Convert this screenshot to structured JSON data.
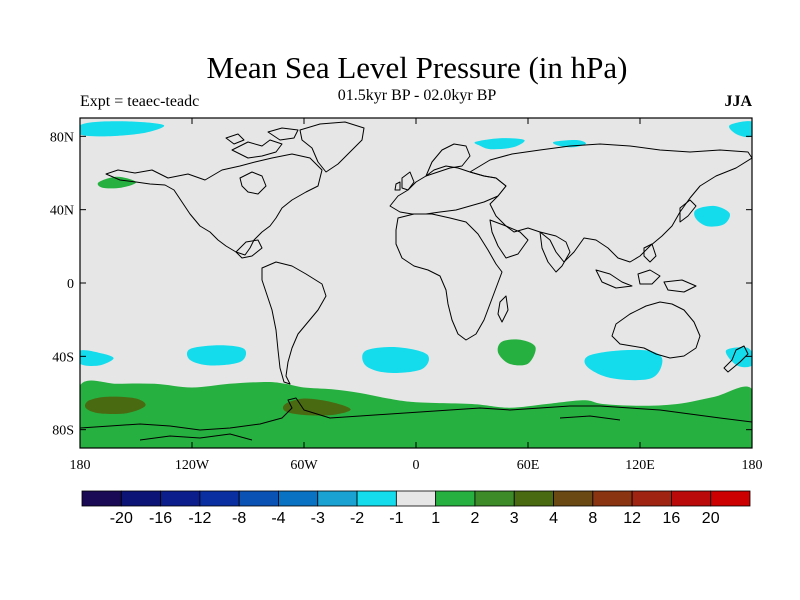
{
  "title": "Mean Sea Level Pressure (in hPa)",
  "subtitle": "01.5kyr BP - 02.0kyr BP",
  "experiment": "Expt = teaec-teadc",
  "season": "JJA",
  "map": {
    "lon_range": [
      -180,
      180
    ],
    "lat_range": [
      -90,
      90
    ],
    "background_color": "#e6e6e6",
    "coastline_color": "#000000",
    "x_ticks": [
      {
        "lon": -180,
        "label": "180"
      },
      {
        "lon": -120,
        "label": "120W"
      },
      {
        "lon": -60,
        "label": "60W"
      },
      {
        "lon": 0,
        "label": "0"
      },
      {
        "lon": 60,
        "label": "60E"
      },
      {
        "lon": 120,
        "label": "120E"
      },
      {
        "lon": 180,
        "label": "180"
      }
    ],
    "y_ticks": [
      {
        "lat": 80,
        "label": "80N"
      },
      {
        "lat": 40,
        "label": "40N"
      },
      {
        "lat": 0,
        "label": "0"
      },
      {
        "lat": -40,
        "label": "40S"
      },
      {
        "lat": -80,
        "label": "80S"
      }
    ],
    "anomaly_regions": [
      {
        "name": "arctic-pacific-low",
        "level": -2,
        "points": [
          [
            -180,
            86
          ],
          [
            -170,
            88
          ],
          [
            -150,
            88
          ],
          [
            -135,
            86
          ],
          [
            -145,
            82
          ],
          [
            -165,
            80
          ],
          [
            -180,
            81
          ]
        ]
      },
      {
        "name": "arctic-east-low",
        "level": -2,
        "points": [
          [
            168,
            86
          ],
          [
            180,
            88
          ],
          [
            180,
            80
          ],
          [
            172,
            81
          ]
        ]
      },
      {
        "name": "arctic-scandinavia-low",
        "level": -2,
        "points": [
          [
            32,
            77
          ],
          [
            45,
            79
          ],
          [
            58,
            78
          ],
          [
            52,
            74
          ],
          [
            40,
            73
          ],
          [
            34,
            75
          ]
        ]
      },
      {
        "name": "arctic-siberia-low",
        "level": -2,
        "points": [
          [
            74,
            77
          ],
          [
            86,
            78
          ],
          [
            91,
            76
          ],
          [
            84,
            74
          ],
          [
            76,
            75
          ]
        ]
      },
      {
        "name": "north-pacific-high",
        "level": 1,
        "points": [
          [
            -170,
            55
          ],
          [
            -160,
            58
          ],
          [
            -150,
            55
          ],
          [
            -158,
            52
          ],
          [
            -168,
            52
          ]
        ]
      },
      {
        "name": "west-pacific-low",
        "level": -2,
        "points": [
          [
            150,
            40
          ],
          [
            160,
            42
          ],
          [
            168,
            38
          ],
          [
            165,
            32
          ],
          [
            156,
            31
          ],
          [
            150,
            35
          ]
        ]
      },
      {
        "name": "south-pacific-low-west",
        "level": -2,
        "points": [
          [
            -180,
            -37
          ],
          [
            -170,
            -38
          ],
          [
            -162,
            -41
          ],
          [
            -170,
            -45
          ],
          [
            -180,
            -44
          ]
        ]
      },
      {
        "name": "south-pacific-low-central",
        "level": -2,
        "points": [
          [
            -121,
            -36
          ],
          [
            -105,
            -34
          ],
          [
            -92,
            -36
          ],
          [
            -94,
            -43
          ],
          [
            -110,
            -45
          ],
          [
            -121,
            -42
          ]
        ]
      },
      {
        "name": "south-atlantic-low",
        "level": -2,
        "points": [
          [
            -27,
            -37
          ],
          [
            -10,
            -35
          ],
          [
            6,
            -39
          ],
          [
            3,
            -47
          ],
          [
            -15,
            -49
          ],
          [
            -27,
            -45
          ]
        ]
      },
      {
        "name": "south-indian-high",
        "level": 1,
        "points": [
          [
            46,
            -32
          ],
          [
            56,
            -31
          ],
          [
            64,
            -35
          ],
          [
            60,
            -44
          ],
          [
            50,
            -44
          ],
          [
            44,
            -38
          ]
        ]
      },
      {
        "name": "south-indian-low",
        "level": -2,
        "points": [
          [
            92,
            -40
          ],
          [
            107,
            -37
          ],
          [
            125,
            -37
          ],
          [
            132,
            -42
          ],
          [
            126,
            -52
          ],
          [
            105,
            -52
          ],
          [
            92,
            -46
          ]
        ]
      },
      {
        "name": "south-pacific-low-east",
        "level": -2,
        "points": [
          [
            166,
            -37
          ],
          [
            176,
            -35
          ],
          [
            180,
            -38
          ],
          [
            180,
            -45
          ],
          [
            172,
            -45
          ]
        ]
      },
      {
        "name": "southern-ocean-high",
        "level": 1,
        "points": [
          [
            -180,
            -56
          ],
          [
            -160,
            -55
          ],
          [
            -140,
            -55
          ],
          [
            -120,
            -57
          ],
          [
            -100,
            -55
          ],
          [
            -80,
            -54
          ],
          [
            -70,
            -55
          ],
          [
            -60,
            -57
          ],
          [
            -45,
            -58
          ],
          [
            -30,
            -60
          ],
          [
            -15,
            -63
          ],
          [
            0,
            -65
          ],
          [
            30,
            -66
          ],
          [
            50,
            -68
          ],
          [
            70,
            -66
          ],
          [
            90,
            -64
          ],
          [
            100,
            -66
          ],
          [
            120,
            -67
          ],
          [
            140,
            -66
          ],
          [
            160,
            -62
          ],
          [
            180,
            -58
          ],
          [
            180,
            -90
          ],
          [
            -180,
            -90
          ]
        ]
      },
      {
        "name": "southern-ocean-high-west-core",
        "level": 3,
        "points": [
          [
            -175,
            -64
          ],
          [
            -165,
            -62
          ],
          [
            -150,
            -63
          ],
          [
            -145,
            -67
          ],
          [
            -155,
            -71
          ],
          [
            -170,
            -71
          ],
          [
            -177,
            -68
          ]
        ]
      },
      {
        "name": "southern-ocean-high-drake-core",
        "level": 3,
        "points": [
          [
            -70,
            -66
          ],
          [
            -60,
            -63
          ],
          [
            -45,
            -65
          ],
          [
            -35,
            -69
          ],
          [
            -45,
            -72
          ],
          [
            -60,
            -72
          ],
          [
            -70,
            -70
          ]
        ]
      }
    ],
    "antarctic_pattern_note": ""
  },
  "colorbar": {
    "colors": [
      "#1a0a55",
      "#0c1475",
      "#0c1e8c",
      "#0a2fa0",
      "#0a52b4",
      "#0a72c2",
      "#1aa2d2",
      "#14dcec",
      "#e6e6e6",
      "#26b040",
      "#3c8a28",
      "#4a6a12",
      "#6a4a12",
      "#8a3412",
      "#a02412",
      "#ba0a0a",
      "#cc0000"
    ],
    "labels": [
      "-20",
      "-16",
      "-12",
      "-8",
      "-4",
      "-3",
      "-2",
      "-1",
      "1",
      "2",
      "3",
      "4",
      "8",
      "12",
      "16",
      "20"
    ]
  },
  "level_colors": {
    "-2": "#14dcec",
    "1": "#26b040",
    "3": "#4a6a12"
  }
}
